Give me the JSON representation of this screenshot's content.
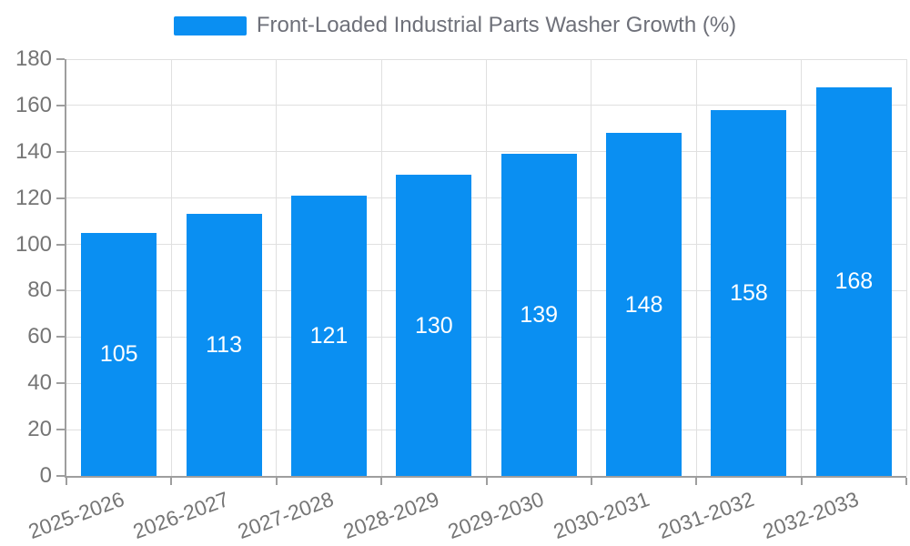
{
  "colors": {
    "bar": "#0a8ff2",
    "grid": "#e0e0e0",
    "axis_line": "#9e9e9e",
    "axis_text": "#757575",
    "legend_text": "#6e7079",
    "value_label": "#ffffff",
    "background": "#ffffff"
  },
  "legend": {
    "label": "Front-Loaded Industrial Parts Washer Growth (%)"
  },
  "chart_data": {
    "type": "bar",
    "title": "Front-Loaded Industrial Parts Washer Growth (%)",
    "categories": [
      "2025-2026",
      "2026-2027",
      "2027-2028",
      "2028-2029",
      "2029-2030",
      "2030-2031",
      "2031-2032",
      "2032-2033"
    ],
    "values": [
      105,
      113,
      121,
      130,
      139,
      148,
      158,
      168
    ],
    "value_labels": [
      "105",
      "113",
      "121",
      "130",
      "139",
      "148",
      "158",
      "168"
    ],
    "xlabel": "",
    "ylabel": "",
    "ylim": [
      0,
      180
    ],
    "ytick_step": 20,
    "yticks": [
      0,
      20,
      40,
      60,
      80,
      100,
      120,
      140,
      160,
      180
    ],
    "grid": true,
    "legend_position": "top",
    "value_labels_inside_bars": true,
    "xlabel_rotation_deg": -20
  }
}
